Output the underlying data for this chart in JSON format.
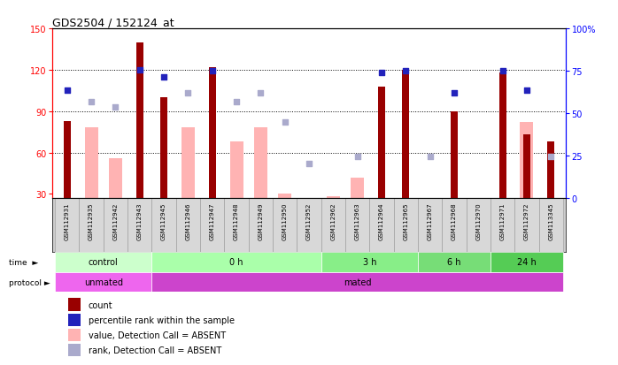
{
  "title": "GDS2504 / 152124_at",
  "samples": [
    "GSM112931",
    "GSM112935",
    "GSM112942",
    "GSM112943",
    "GSM112945",
    "GSM112946",
    "GSM112947",
    "GSM112948",
    "GSM112949",
    "GSM112950",
    "GSM112952",
    "GSM112962",
    "GSM112963",
    "GSM112964",
    "GSM112965",
    "GSM112967",
    "GSM112968",
    "GSM112970",
    "GSM112971",
    "GSM112972",
    "GSM113345"
  ],
  "count_values": [
    83,
    null,
    null,
    140,
    100,
    null,
    122,
    null,
    null,
    null,
    null,
    null,
    null,
    108,
    120,
    null,
    90,
    null,
    118,
    73,
    68
  ],
  "absent_values": [
    null,
    78,
    56,
    null,
    null,
    78,
    null,
    68,
    78,
    30,
    26,
    28,
    42,
    null,
    null,
    null,
    null,
    16,
    null,
    82,
    26
  ],
  "dark_dot_left": [
    105,
    null,
    null,
    120,
    115,
    null,
    119,
    null,
    null,
    null,
    null,
    null,
    null,
    118,
    119,
    null,
    103,
    null,
    119,
    105,
    null
  ],
  "absent_dot_left": [
    null,
    97,
    93,
    null,
    null,
    103,
    null,
    97,
    103,
    82,
    52,
    null,
    57,
    null,
    null,
    57,
    null,
    null,
    null,
    null,
    57
  ],
  "bar_dark_color": "#990000",
  "bar_absent_color": "#ffb3b3",
  "dot_dark_color": "#2222bb",
  "dot_absent_color": "#aaaacc",
  "ylim_left": [
    27,
    150
  ],
  "yticks_left": [
    30,
    60,
    90,
    120,
    150
  ],
  "yticks_right_pct": [
    0,
    25,
    50,
    75,
    100
  ],
  "ytick_labels_right": [
    "0",
    "25",
    "50",
    "75",
    "100%"
  ],
  "grid_lines": [
    60,
    90,
    120
  ],
  "time_groups": [
    {
      "label": "control",
      "start": 0,
      "end": 3,
      "color": "#ccffcc"
    },
    {
      "label": "0 h",
      "start": 4,
      "end": 10,
      "color": "#aaffaa"
    },
    {
      "label": "3 h",
      "start": 11,
      "end": 14,
      "color": "#88ee88"
    },
    {
      "label": "6 h",
      "start": 15,
      "end": 17,
      "color": "#77dd77"
    },
    {
      "label": "24 h",
      "start": 18,
      "end": 20,
      "color": "#55cc55"
    }
  ],
  "protocol_groups": [
    {
      "label": "unmated",
      "start": 0,
      "end": 3,
      "color": "#ee66ee"
    },
    {
      "label": "mated",
      "start": 4,
      "end": 20,
      "color": "#cc44cc"
    }
  ],
  "legend_labels": [
    "count",
    "percentile rank within the sample",
    "value, Detection Call = ABSENT",
    "rank, Detection Call = ABSENT"
  ],
  "legend_colors": [
    "#990000",
    "#2222bb",
    "#ffb3b3",
    "#aaaacc"
  ]
}
